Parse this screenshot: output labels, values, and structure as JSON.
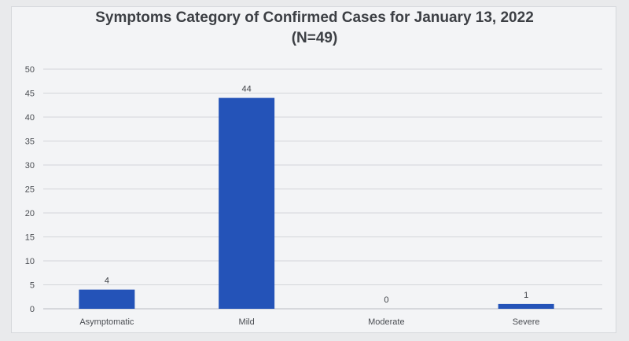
{
  "chart_data": {
    "type": "bar",
    "title": "Symptoms Category of Confirmed Cases for  January 13, 2022",
    "subtitle": "(N=49)",
    "categories": [
      "Asymptomatic",
      "Mild",
      "Moderate",
      "Severe"
    ],
    "values": [
      4,
      44,
      0,
      1
    ],
    "ylim": [
      0,
      50
    ],
    "yticks": [
      0,
      5,
      10,
      15,
      20,
      25,
      30,
      35,
      40,
      45,
      50
    ],
    "grid": true,
    "data_labels": true,
    "bar_color": "#2453b8"
  }
}
